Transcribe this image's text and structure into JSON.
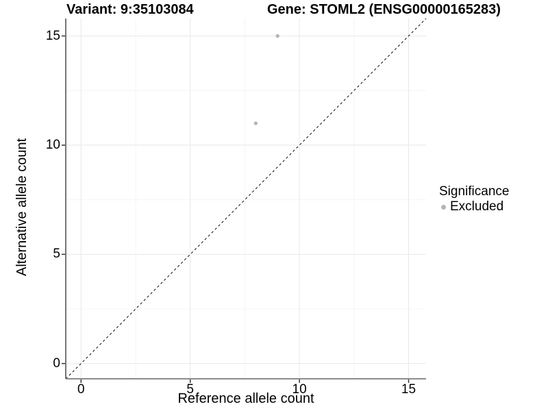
{
  "chart_data": {
    "type": "scatter",
    "title_left": "Variant: 9:35103084",
    "title_right": "Gene: STOML2 (ENSG00000165283)",
    "xlabel": "Reference allele count",
    "ylabel": "Alternative allele count",
    "xlim": [
      -0.7,
      15.8
    ],
    "ylim": [
      -0.7,
      15.8
    ],
    "x_ticks": [
      0,
      5,
      10,
      15
    ],
    "y_ticks": [
      0,
      5,
      10,
      15
    ],
    "minor_gridlines": [
      2.5,
      7.5,
      12.5
    ],
    "grid": true,
    "legend_position": "right",
    "reference_line": {
      "slope": 1,
      "intercept": 0,
      "style": "dashed",
      "color": "#1a1a1a"
    },
    "series": [
      {
        "name": "Excluded",
        "color": "#b5b5b5",
        "points": [
          {
            "x": 8,
            "y": 11
          },
          {
            "x": 9,
            "y": 15
          }
        ]
      }
    ],
    "legend": {
      "title": "Significance",
      "items": [
        {
          "label": "Excluded",
          "color": "#b5b5b5"
        }
      ]
    },
    "colors": {
      "background": "#ffffff",
      "grid_major": "#e8e8e8",
      "grid_minor": "#f4f4f4",
      "y_axis_line": "#2b2b2b",
      "x_axis_line": "#8c8c8c",
      "tick_mark": "#333333",
      "text": "#000000"
    }
  }
}
